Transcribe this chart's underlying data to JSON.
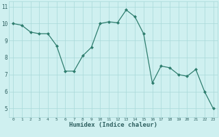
{
  "x": [
    0,
    1,
    2,
    3,
    4,
    5,
    6,
    7,
    8,
    9,
    10,
    11,
    12,
    13,
    14,
    15,
    16,
    17,
    18,
    19,
    20,
    21,
    22,
    23
  ],
  "y": [
    10.0,
    9.9,
    9.5,
    9.4,
    9.4,
    8.7,
    7.2,
    7.2,
    8.1,
    8.6,
    10.0,
    10.1,
    10.05,
    10.8,
    10.4,
    9.4,
    6.5,
    7.5,
    7.4,
    7.0,
    6.9,
    7.3,
    6.0,
    5.0
  ],
  "xlabel": "Humidex (Indice chaleur)",
  "ylim": [
    4.5,
    11.3
  ],
  "xlim": [
    -0.5,
    23.5
  ],
  "yticks": [
    5,
    6,
    7,
    8,
    9,
    10,
    11
  ],
  "xticks": [
    0,
    1,
    2,
    3,
    4,
    5,
    6,
    7,
    8,
    9,
    10,
    11,
    12,
    13,
    14,
    15,
    16,
    17,
    18,
    19,
    20,
    21,
    22,
    23
  ],
  "line_color": "#2e7d6e",
  "marker_color": "#2e7d6e",
  "bg_color": "#cff0f0",
  "grid_color": "#a8d8d8",
  "tick_label_color": "#2e6060",
  "xlabel_color": "#2e6060",
  "bottom_bar_color": "#3a8888"
}
